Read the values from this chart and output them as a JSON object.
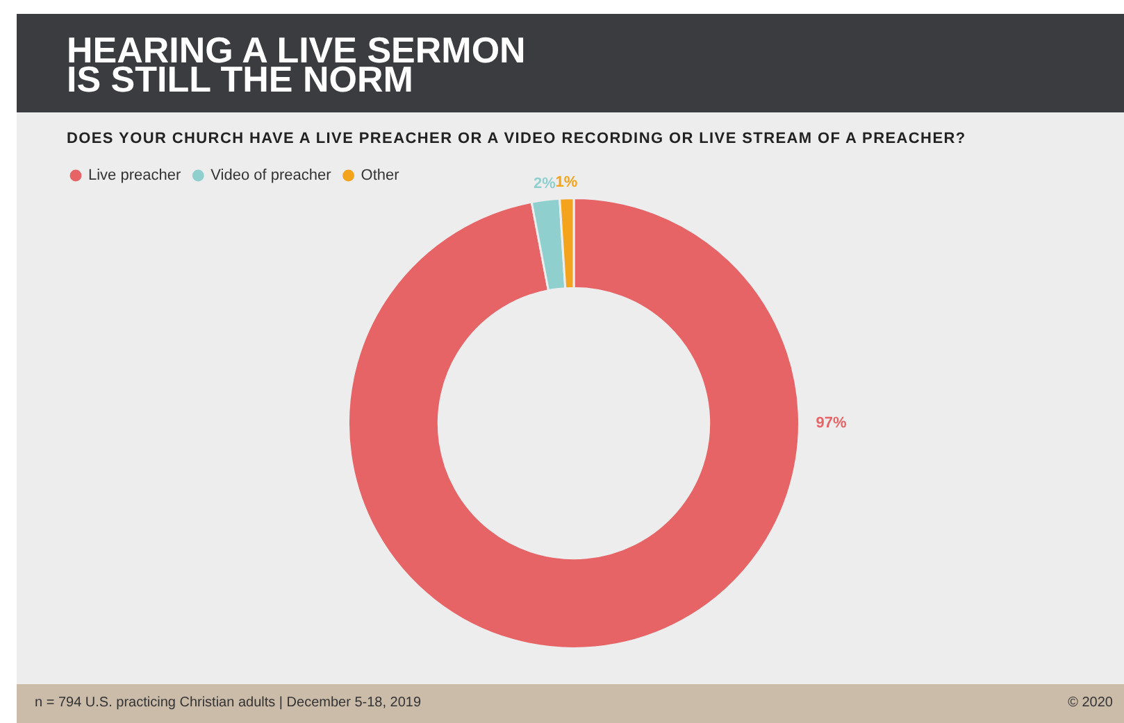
{
  "chart_data": {
    "type": "donut",
    "title": "HEARING A LIVE SERMON IS STILL THE NORM",
    "subtitle": "DOES YOUR CHURCH HAVE A LIVE PREACHER OR A VIDEO RECORDING OR LIVE STREAM OF A PREACHER?",
    "categories": [
      "Live preacher",
      "Video of preacher",
      "Other"
    ],
    "values": [
      97,
      2,
      1
    ],
    "colors": [
      "#e76466",
      "#8fd0cf",
      "#f4a31c"
    ],
    "value_labels": [
      "97%",
      "2%",
      "1%"
    ],
    "legend": "top left",
    "annotations": [
      "n = 794 U.S. practicing Christian adults | December 5-18, 2019",
      "© 2020"
    ]
  }
}
